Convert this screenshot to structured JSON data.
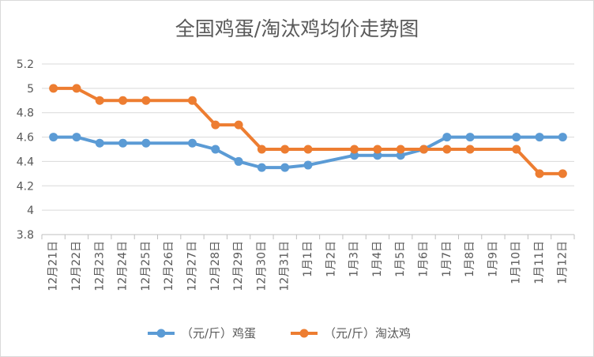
{
  "chart_data": {
    "type": "line",
    "title": "全国鸡蛋/淘汰鸡均价走势图",
    "xlabel": "",
    "ylabel": "",
    "ylim": [
      3.8,
      5.2
    ],
    "yticks": [
      "5.2",
      "5",
      "4.8",
      "4.6",
      "4.4",
      "4.2",
      "4",
      "3.8"
    ],
    "ytick_values": [
      5.2,
      5.0,
      4.8,
      4.6,
      4.4,
      4.2,
      4.0,
      3.8
    ],
    "grid": true,
    "legend_position": "bottom",
    "categories": [
      "12月21日",
      "12月22日",
      "12月23日",
      "12月24日",
      "12月25日",
      "12月26日",
      "12月27日",
      "12月28日",
      "12月29日",
      "12月30日",
      "12月31日",
      "1月1日",
      "1月2日",
      "1月3日",
      "1月4日",
      "1月5日",
      "1月6日",
      "1月7日",
      "1月8日",
      "1月9日",
      "1月10日",
      "1月11日",
      "1月12日"
    ],
    "series": [
      {
        "name": "（元/斤）鸡蛋",
        "color": "#5B9BD5",
        "values": [
          4.6,
          4.6,
          4.55,
          4.55,
          4.55,
          null,
          4.55,
          4.5,
          4.4,
          4.35,
          4.35,
          4.37,
          null,
          4.45,
          4.45,
          4.45,
          4.5,
          4.6,
          4.6,
          null,
          4.6,
          4.6,
          4.6
        ]
      },
      {
        "name": "（元/斤）淘汰鸡",
        "color": "#ED7D31",
        "values": [
          5.0,
          5.0,
          4.9,
          4.9,
          4.9,
          null,
          4.9,
          4.7,
          4.7,
          4.5,
          4.5,
          4.5,
          null,
          4.5,
          4.5,
          4.5,
          4.5,
          4.5,
          4.5,
          null,
          4.5,
          4.3,
          4.3
        ]
      }
    ]
  }
}
